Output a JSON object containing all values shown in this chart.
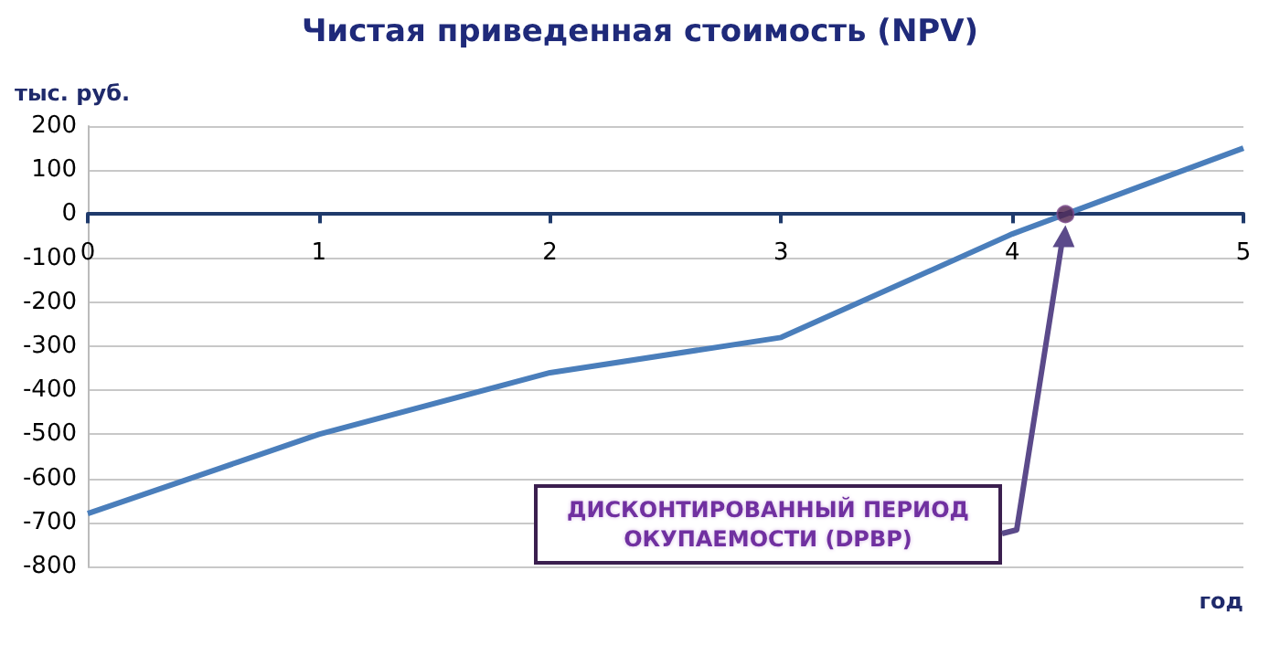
{
  "chart_data": {
    "type": "line",
    "title": "Чистая приведенная стоимость (NPV)",
    "xlabel": "год",
    "ylabel": "тыс. руб.",
    "x": [
      0,
      1,
      2,
      3,
      4,
      5
    ],
    "series": [
      {
        "color": "#4a7ebb",
        "values": [
          -680,
          -500,
          -360,
          -280,
          -45,
          150
        ]
      },
      {
        "type": "scatter",
        "marker": "circle",
        "color": "#4b1e4b",
        "x": [
          4.23
        ],
        "values": [
          0
        ]
      }
    ],
    "xlim": [
      0,
      5
    ],
    "xticks": [
      0,
      1,
      2,
      3,
      4,
      5
    ],
    "ylim": [
      -800,
      200
    ],
    "yticks": [
      -800,
      -700,
      -600,
      -500,
      -400,
      -300,
      -200,
      -100,
      0,
      100,
      200
    ],
    "grid": "y",
    "marker": "none",
    "annotations": [
      "ДИСКОНТИРОВАННЫЙ ПЕРИОД ОКУПАЕМОСТИ (DPBP)"
    ]
  }
}
